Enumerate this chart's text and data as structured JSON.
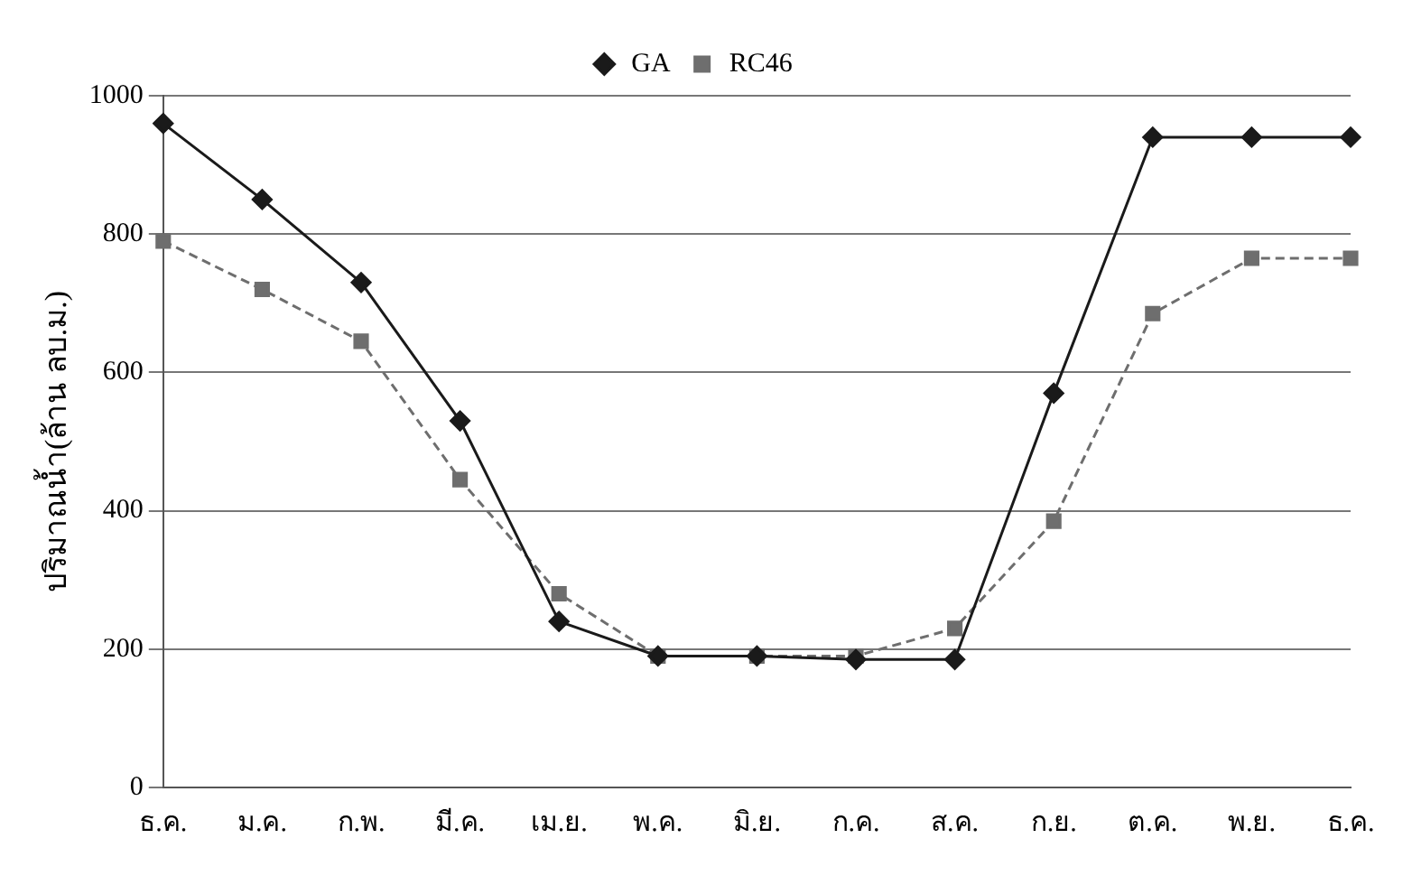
{
  "chart_data": {
    "type": "line",
    "ylabel": "ปริมาณน้ำ(ล้าน ลบ.ม.)",
    "categories": [
      "ธ.ค.",
      "ม.ค.",
      "ก.พ.",
      "มี.ค.",
      "เม.ย.",
      "พ.ค.",
      "มิ.ย.",
      "ก.ค.",
      "ส.ค.",
      "ก.ย.",
      "ต.ค.",
      "พ.ย.",
      "ธ.ค."
    ],
    "series": [
      {
        "name": "GA",
        "color": "#1a1a1a",
        "marker": "diamond",
        "line_style": "solid",
        "values": [
          960,
          850,
          730,
          530,
          240,
          190,
          190,
          185,
          185,
          570,
          940,
          940,
          940
        ]
      },
      {
        "name": "RC46",
        "color": "#6e6e6e",
        "marker": "square",
        "line_style": "dashed",
        "values": [
          790,
          720,
          645,
          445,
          280,
          190,
          190,
          190,
          230,
          385,
          685,
          765,
          765
        ]
      }
    ],
    "ylim": [
      0,
      1000
    ],
    "yticks": [
      0,
      200,
      400,
      600,
      800,
      1000
    ],
    "grid": "y",
    "legend": "top"
  }
}
